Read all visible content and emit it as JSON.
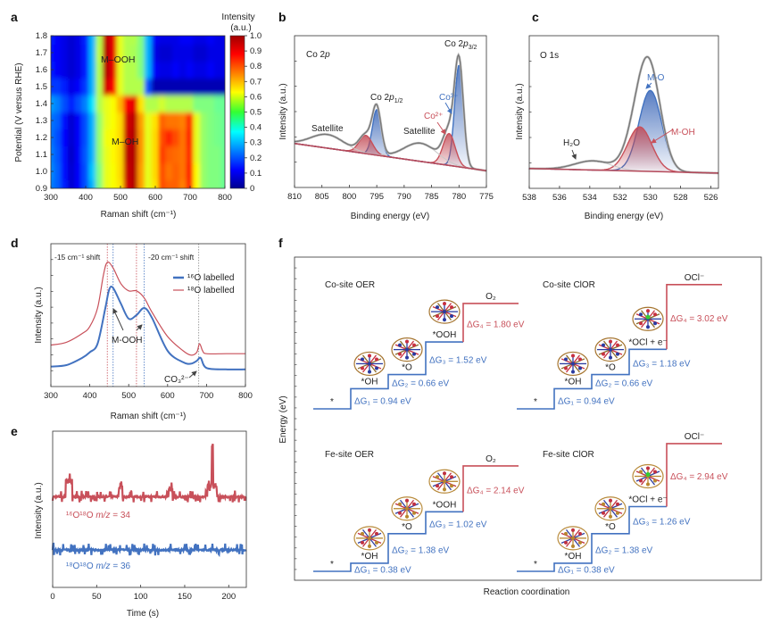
{
  "panels": [
    "a",
    "b",
    "c",
    "d",
    "e",
    "f"
  ],
  "colors": {
    "blue": "#4272c0",
    "red": "#c8505a",
    "gray": "#8a8a8a",
    "bg_red": "#b5495a"
  },
  "chart_data": [
    {
      "type": "heatmap",
      "xlabel": "Raman shift (cm⁻¹)",
      "ylabel": "Potential (V versus RHE)",
      "xlim": [
        300,
        800
      ],
      "ylim": [
        0.9,
        1.8
      ],
      "xticks": [
        "300",
        "400",
        "500",
        "600",
        "700",
        "800"
      ],
      "yticks": [
        "0.9",
        "1.0",
        "1.1",
        "1.2",
        "1.3",
        "1.4",
        "1.5",
        "1.6",
        "1.7",
        "1.8"
      ],
      "colorbar": {
        "title_line1": "Intensity",
        "title_line2": "(a.u.)",
        "range": [
          0,
          1.0
        ],
        "colormap": "jet",
        "ticks": [
          "0",
          "0.1",
          "0.2",
          "0.3",
          "0.4",
          "0.5",
          "0.6",
          "0.7",
          "0.8",
          "0.9",
          "1.0"
        ]
      },
      "annotations": [
        "M–OOH",
        "M–OH"
      ],
      "x": [
        300,
        320,
        340,
        360,
        380,
        400,
        420,
        440,
        460,
        480,
        500,
        520,
        540,
        560,
        580,
        600,
        620,
        640,
        660,
        680,
        700,
        720,
        740,
        760,
        780,
        800
      ],
      "y": [
        0.9,
        1.0,
        1.1,
        1.2,
        1.3,
        1.4,
        1.5,
        1.6,
        1.7,
        1.8
      ],
      "z": [
        [
          0.25,
          0.22,
          0.15,
          0.08,
          0.12,
          0.2,
          0.3,
          0.5,
          0.6,
          0.62,
          0.65,
          0.92,
          0.95,
          0.72,
          0.6,
          0.65,
          0.8,
          0.78,
          0.78,
          0.75,
          0.85,
          0.62,
          0.52,
          0.5,
          0.5,
          0.48
        ],
        [
          0.26,
          0.22,
          0.14,
          0.08,
          0.12,
          0.2,
          0.32,
          0.5,
          0.6,
          0.62,
          0.66,
          0.93,
          0.95,
          0.72,
          0.6,
          0.66,
          0.8,
          0.76,
          0.78,
          0.76,
          0.86,
          0.62,
          0.52,
          0.5,
          0.5,
          0.48
        ],
        [
          0.25,
          0.21,
          0.14,
          0.07,
          0.12,
          0.21,
          0.3,
          0.52,
          0.6,
          0.63,
          0.66,
          0.94,
          0.95,
          0.73,
          0.6,
          0.66,
          0.82,
          0.78,
          0.77,
          0.76,
          0.85,
          0.6,
          0.52,
          0.5,
          0.5,
          0.48
        ],
        [
          0.24,
          0.2,
          0.13,
          0.08,
          0.12,
          0.2,
          0.3,
          0.52,
          0.61,
          0.63,
          0.66,
          0.93,
          0.95,
          0.73,
          0.6,
          0.66,
          0.8,
          0.84,
          0.8,
          0.76,
          0.86,
          0.6,
          0.52,
          0.5,
          0.49,
          0.48
        ],
        [
          0.24,
          0.22,
          0.14,
          0.08,
          0.12,
          0.2,
          0.3,
          0.52,
          0.6,
          0.62,
          0.66,
          0.92,
          0.94,
          0.72,
          0.6,
          0.65,
          0.78,
          0.76,
          0.76,
          0.75,
          0.84,
          0.6,
          0.52,
          0.5,
          0.49,
          0.48
        ],
        [
          0.28,
          0.25,
          0.2,
          0.15,
          0.2,
          0.25,
          0.35,
          0.55,
          0.6,
          0.62,
          0.7,
          0.88,
          0.9,
          0.65,
          0.55,
          0.55,
          0.58,
          0.55,
          0.55,
          0.55,
          0.55,
          0.5,
          0.5,
          0.5,
          0.48,
          0.48
        ],
        [
          0.18,
          0.18,
          0.15,
          0.1,
          0.12,
          0.18,
          0.3,
          0.55,
          0.92,
          0.88,
          0.6,
          0.55,
          0.55,
          0.55,
          0.2,
          0.05,
          0.05,
          0.05,
          0.05,
          0.05,
          0.05,
          0.05,
          0.05,
          0.05,
          0.05,
          0.05
        ],
        [
          0.15,
          0.12,
          0.1,
          0.08,
          0.1,
          0.15,
          0.3,
          0.55,
          0.95,
          0.9,
          0.6,
          0.55,
          0.55,
          0.5,
          0.3,
          0.12,
          0.1,
          0.1,
          0.12,
          0.1,
          0.12,
          0.1,
          0.1,
          0.12,
          0.1,
          0.1
        ],
        [
          0.14,
          0.12,
          0.1,
          0.08,
          0.1,
          0.15,
          0.3,
          0.56,
          0.95,
          0.9,
          0.6,
          0.55,
          0.54,
          0.5,
          0.3,
          0.1,
          0.08,
          0.08,
          0.1,
          0.1,
          0.1,
          0.08,
          0.08,
          0.1,
          0.1,
          0.1
        ],
        [
          0.15,
          0.12,
          0.1,
          0.08,
          0.1,
          0.16,
          0.3,
          0.55,
          0.94,
          0.9,
          0.6,
          0.55,
          0.55,
          0.5,
          0.3,
          0.12,
          0.1,
          0.1,
          0.1,
          0.12,
          0.12,
          0.1,
          0.1,
          0.12,
          0.1,
          0.1
        ]
      ]
    },
    {
      "type": "line",
      "title": "Co 2p",
      "xlabel": "Binding energy (eV)",
      "ylabel": "Intensity (a.u.)",
      "xlim": [
        810,
        775
      ],
      "ylim": [
        0,
        1
      ],
      "xticks": [
        "810",
        "805",
        "800",
        "795",
        "790",
        "785",
        "780",
        "775"
      ],
      "background": {
        "x": [
          810,
          775
        ],
        "y": [
          0.29,
          0.11
        ]
      },
      "components": [
        {
          "name": "Co³⁺",
          "color": "blue",
          "center": 780.0,
          "height": 0.67,
          "sigma": 0.8
        },
        {
          "name": "Co²⁺",
          "color": "red",
          "center": 781.8,
          "height": 0.21,
          "sigma": 1.1
        },
        {
          "name": "Co³⁺",
          "color": "blue",
          "center": 795.0,
          "height": 0.3,
          "sigma": 0.8
        },
        {
          "name": "Co²⁺",
          "color": "red",
          "center": 797.0,
          "height": 0.12,
          "sigma": 1.2
        },
        {
          "name": "Satellite",
          "color": "gray",
          "center": 804.0,
          "height": 0.09,
          "sigma": 3.0
        },
        {
          "name": "Satellite",
          "color": "gray",
          "center": 787.0,
          "height": 0.12,
          "sigma": 3.0
        }
      ],
      "labels": {
        "p12": {
          "pre": "Co 2",
          "it": "p",
          "sub": "1/2"
        },
        "p32": {
          "pre": "Co 2",
          "it": "p",
          "sub": "3/2"
        },
        "co3": "Co³⁺",
        "co2": "Co²⁺",
        "sat1": "Satellite",
        "sat2": "Satellite",
        "title_pre": "Co 2",
        "title_it": "p"
      }
    },
    {
      "type": "line",
      "title": "O 1s",
      "xlabel": "Binding energy (eV)",
      "ylabel": "Intensity (a.u.)",
      "xlim": [
        538,
        525.5
      ],
      "ylim": [
        0,
        1
      ],
      "xticks": [
        "538",
        "536",
        "534",
        "532",
        "530",
        "528",
        "526"
      ],
      "background": {
        "x": [
          538,
          525.5
        ],
        "y": [
          0.13,
          0.1
        ]
      },
      "components": [
        {
          "name": "M-O",
          "color": "blue",
          "center": 530.0,
          "height": 0.53,
          "sigma": 0.75
        },
        {
          "name": "M-OH",
          "color": "red",
          "center": 530.7,
          "height": 0.29,
          "sigma": 0.8
        },
        {
          "name": "H₂O",
          "color": "gray",
          "center": 533.8,
          "height": 0.06,
          "sigma": 1.2
        }
      ]
    },
    {
      "type": "line",
      "xlabel": "Raman shift (cm⁻¹)",
      "ylabel": "Intensity (a.u.)",
      "xlim": [
        300,
        800
      ],
      "ylim": [
        0,
        1
      ],
      "xticks": [
        "300",
        "400",
        "500",
        "600",
        "700",
        "800"
      ],
      "series": [
        {
          "name": "¹⁶O labelled",
          "color": "blue",
          "x": [
            300,
            340,
            380,
            400,
            420,
            440,
            450,
            460,
            480,
            500,
            520,
            540,
            560,
            600,
            640,
            660,
            675,
            685,
            700,
            750,
            800
          ],
          "y": [
            0.14,
            0.15,
            0.2,
            0.24,
            0.3,
            0.55,
            0.68,
            0.69,
            0.58,
            0.475,
            0.5,
            0.55,
            0.48,
            0.25,
            0.17,
            0.16,
            0.18,
            0.2,
            0.13,
            0.12,
            0.12
          ]
        },
        {
          "name": "¹⁸O labelled",
          "color": "red",
          "x": [
            300,
            340,
            380,
            400,
            420,
            435,
            445,
            460,
            480,
            500,
            520,
            540,
            560,
            600,
            640,
            660,
            675,
            682,
            690,
            700,
            750,
            800
          ],
          "y": [
            0.29,
            0.31,
            0.37,
            0.42,
            0.55,
            0.78,
            0.87,
            0.83,
            0.72,
            0.67,
            0.67,
            0.62,
            0.52,
            0.35,
            0.25,
            0.22,
            0.24,
            0.3,
            0.25,
            0.23,
            0.23,
            0.23
          ]
        }
      ],
      "reference_lines": [
        {
          "x": 445,
          "color": "red"
        },
        {
          "x": 460,
          "color": "blue"
        },
        {
          "x": 520,
          "color": "red"
        },
        {
          "x": 540,
          "color": "blue"
        },
        {
          "x": 680,
          "color": "gray"
        }
      ],
      "annotations": {
        "shift1": "-15 cm⁻¹ shift",
        "shift2": "-20 cm⁻¹ shift",
        "mooh": "M-OOH",
        "co3": "CO₃²⁻"
      },
      "legend": "top-right"
    },
    {
      "type": "line",
      "xlabel": "Time (s)",
      "ylabel": "Intensity (a.u.)",
      "xlim": [
        0,
        220
      ],
      "ylim": [
        0,
        1
      ],
      "xticks": [
        "0",
        "50",
        "100",
        "150",
        "200"
      ],
      "series": [
        {
          "name_pre": "¹⁶O¹⁸O ",
          "name_it": "m/z",
          "name_post": " = 34",
          "color": "red",
          "baseline": 0.58,
          "peaks": [
            {
              "t": [
                15,
                22
              ],
              "value": 0.7
            },
            {
              "t": [
                75,
                79
              ],
              "value": 0.68
            },
            {
              "t": [
                132,
                136
              ],
              "value": 0.66
            },
            {
              "t": [
                176,
                186
              ],
              "value": 0.68
            },
            {
              "t": [
                181,
                182
              ],
              "value": 0.92
            }
          ]
        },
        {
          "name_pre": "¹⁸O¹⁸O ",
          "name_it": "m/z",
          "name_post": " = 36",
          "color": "blue",
          "baseline": 0.24,
          "peaks": []
        }
      ]
    },
    {
      "type": "step",
      "xlabel": "Reaction coordination",
      "ylabel": "Energy (eV)",
      "diagrams": [
        {
          "title": "Co-site OER",
          "steps": [
            "*",
            "*OH",
            "*O",
            "*OOH",
            "O₂"
          ],
          "dG": [
            0.94,
            0.66,
            1.52,
            1.8
          ],
          "dG_labels": [
            "ΔG₁ = 0.94 eV",
            "ΔG₂ = 0.66 eV",
            "ΔG₃ = 1.52 eV",
            "ΔG₄ = 1.80 eV"
          ]
        },
        {
          "title": "Co-site ClOR",
          "steps": [
            "*",
            "*OH",
            "*O",
            "*OCl + e⁻",
            "OCl⁻"
          ],
          "dG": [
            0.94,
            0.66,
            1.18,
            3.02
          ],
          "dG_labels": [
            "ΔG₁ = 0.94 eV",
            "ΔG₂ = 0.66 eV",
            "ΔG₃ = 1.18 eV",
            "ΔG₄ = 3.02 eV"
          ]
        },
        {
          "title": "Fe-site OER",
          "steps": [
            "*",
            "*OH",
            "*O",
            "*OOH",
            "O₂"
          ],
          "dG": [
            0.38,
            1.38,
            1.02,
            2.14
          ],
          "dG_labels": [
            "ΔG₁ = 0.38 eV",
            "ΔG₂ = 1.38 eV",
            "ΔG₃ = 1.02 eV",
            "ΔG₄ = 2.14 eV"
          ]
        },
        {
          "title": "Fe-site ClOR",
          "steps": [
            "*",
            "*OH",
            "*O",
            "*OCl + e⁻",
            "OCl⁻"
          ],
          "dG": [
            0.38,
            1.38,
            1.26,
            2.94
          ],
          "dG_labels": [
            "ΔG₁ = 0.38 eV",
            "ΔG₂ = 1.38 eV",
            "ΔG₃ = 1.26 eV",
            "ΔG₄ = 2.94 eV"
          ]
        }
      ]
    }
  ]
}
